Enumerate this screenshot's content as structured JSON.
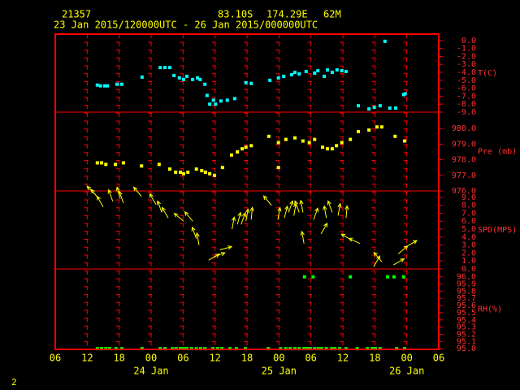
{
  "header": {
    "station": "21357",
    "latitude": "83.10S",
    "longitude": "174.29E",
    "elevation": "62M",
    "period": "23 Jan 2015/120000UTC - 26 Jan 2015/000000UTC",
    "page": "2"
  },
  "chart_data": [
    {
      "type": "scatter",
      "ylabel": "T(C)",
      "color": "#00ffff",
      "ylim": [
        -9.0,
        0.8
      ],
      "yticks": [
        {
          "value": 0,
          "label": "0.0"
        },
        {
          "value": -1,
          "label": "-1.0"
        },
        {
          "value": -2,
          "label": "-2.0"
        },
        {
          "value": -3,
          "label": "-3.0"
        },
        {
          "value": -4,
          "label": "-4.0"
        },
        {
          "value": -5,
          "label": "-5.0"
        },
        {
          "value": -6,
          "label": "-6.0"
        },
        {
          "value": -7,
          "label": "-7.0"
        },
        {
          "value": -8,
          "label": "-8.0"
        },
        {
          "value": -9,
          "label": "-9.0"
        }
      ],
      "x": [
        13.9,
        14.5,
        15.3,
        15.8,
        17.6,
        18.5,
        22.3,
        25.7,
        26.6,
        27.5,
        28.3,
        29.3,
        30.1,
        30.7,
        31.8,
        32.7,
        33.2,
        34.1,
        34.5,
        35.0,
        35.7,
        36.1,
        37.1,
        38.3,
        39.7,
        41.8,
        42.8,
        46.3,
        47.9,
        48.9,
        50.4,
        51.0,
        51.8,
        53.1,
        54.7,
        55.3,
        56.5,
        57.1,
        58.0,
        58.9,
        59.8,
        60.6,
        62.9,
        64.9,
        65.9,
        67.0,
        67.9,
        68.8,
        69.9,
        71.4,
        71.7
      ],
      "values": [
        -5.6,
        -5.7,
        -5.7,
        -5.7,
        -5.5,
        -5.5,
        -4.6,
        -3.4,
        -3.4,
        -3.4,
        -4.4,
        -4.7,
        -4.9,
        -4.5,
        -4.9,
        -4.7,
        -4.9,
        -5.5,
        -6.9,
        -8.0,
        -7.5,
        -8.0,
        -7.6,
        -7.5,
        -7.3,
        -5.3,
        -5.4,
        -5.0,
        -4.7,
        -4.5,
        -4.3,
        -4.0,
        -4.2,
        -3.9,
        -4.1,
        -3.8,
        -4.5,
        -3.7,
        -4.0,
        -3.7,
        -3.8,
        -3.9,
        -8.2,
        -8.6,
        -8.4,
        -8.2,
        -0.1,
        -8.5,
        -8.5,
        -6.8,
        -6.7
      ]
    },
    {
      "type": "scatter",
      "ylabel": "Pre (mb)",
      "color": "#ffff00",
      "ylim": [
        976.0,
        981.05
      ],
      "yticks": [
        {
          "value": 976,
          "label": "976.0"
        },
        {
          "value": 977,
          "label": "977.0"
        },
        {
          "value": 978,
          "label": "978.0"
        },
        {
          "value": 979,
          "label": "979.0"
        },
        {
          "value": 980,
          "label": "980.0"
        }
      ],
      "x": [
        13.9,
        14.7,
        15.5,
        17.3,
        18.8,
        22.2,
        25.5,
        27.5,
        28.6,
        29.5,
        30.1,
        30.9,
        32.5,
        33.5,
        34.2,
        35.0,
        35.9,
        37.4,
        39.1,
        40.2,
        41.1,
        41.8,
        42.8,
        46.1,
        47.9,
        47.9,
        49.3,
        51.0,
        52.5,
        53.7,
        54.7,
        56.2,
        57.1,
        58.0,
        58.8,
        59.8,
        61.4,
        62.9,
        64.9,
        66.4,
        67.3,
        69.8,
        71.6
      ],
      "values": [
        977.8,
        977.8,
        977.7,
        977.7,
        977.8,
        977.6,
        977.7,
        977.4,
        977.2,
        977.2,
        977.1,
        977.2,
        977.4,
        977.3,
        977.2,
        977.1,
        977.0,
        977.5,
        978.3,
        978.5,
        978.7,
        978.8,
        978.9,
        979.5,
        979.1,
        977.5,
        979.3,
        979.4,
        979.2,
        979.1,
        979.3,
        978.8,
        978.7,
        978.7,
        978.9,
        979.1,
        979.3,
        979.8,
        979.9,
        980.1,
        980.1,
        979.5,
        979.2
      ]
    },
    {
      "type": "wind",
      "ylabel": "SPD(MPS)",
      "color": "#ffff00",
      "ylim": [
        0,
        9.8
      ],
      "yticks": [
        {
          "value": 0,
          "label": "0.0"
        },
        {
          "value": 1,
          "label": "1.0"
        },
        {
          "value": 2,
          "label": "2.0"
        },
        {
          "value": 3,
          "label": "3.0"
        },
        {
          "value": 4,
          "label": "4.0"
        },
        {
          "value": 5,
          "label": "5.0"
        },
        {
          "value": 6,
          "label": "6.0"
        },
        {
          "value": 7,
          "label": "7.0"
        },
        {
          "value": 8,
          "label": "8.0"
        },
        {
          "value": 9,
          "label": "9.0"
        }
      ],
      "x": [
        13.6,
        14.2,
        15.0,
        16.8,
        18.2,
        18.8,
        22.2,
        24.9,
        26.0,
        27.2,
        30.1,
        31.8,
        32.5,
        33.0,
        34.8,
        35.7,
        36.9,
        39.2,
        40.2,
        40.9,
        41.8,
        42.8,
        46.6,
        47.8,
        49.0,
        49.8,
        50.8,
        51.8,
        52.5,
        52.7,
        54.5,
        55.9,
        56.9,
        58.0,
        59.1,
        60.6,
        61.7,
        63.2,
        65.8,
        67.3,
        69.5,
        70.4,
        71.9
      ],
      "values": [
        9.3,
        8.8,
        7.8,
        8.5,
        8.8,
        8.3,
        9.1,
        8.1,
        7.1,
        6.4,
        6.0,
        6.0,
        3.8,
        3.0,
        1.1,
        1.5,
        2.4,
        5.0,
        5.6,
        5.6,
        6.0,
        6.2,
        8.0,
        6.2,
        6.4,
        7.1,
        6.7,
        7.1,
        7.1,
        3.2,
        6.2,
        4.4,
        6.4,
        7.1,
        6.7,
        6.4,
        3.6,
        3.2,
        0.3,
        0.9,
        0.5,
        1.9,
        2.8
      ],
      "directions": [
        315,
        320,
        330,
        340,
        345,
        340,
        320,
        330,
        340,
        330,
        310,
        320,
        340,
        350,
        60,
        70,
        75,
        10,
        15,
        20,
        10,
        5,
        320,
        10,
        15,
        20,
        10,
        340,
        350,
        350,
        20,
        30,
        350,
        340,
        10,
        5,
        300,
        295,
        30,
        320,
        60,
        50,
        60
      ]
    },
    {
      "type": "scatter",
      "ylabel": "RH(%)",
      "color": "#00ff00",
      "ylim": [
        94.99,
        96.11
      ],
      "yticks": [
        {
          "value": 95,
          "label": "95.0"
        },
        95.1,
        95.2,
        95.3,
        95.4,
        95.5,
        95.6,
        95.7,
        95.8,
        95.9,
        {
          "value": 96,
          "label": "96.0"
        }
      ],
      "xlim": [
        6,
        78
      ],
      "xticks": [
        {
          "value": 6,
          "label": "06"
        },
        {
          "value": 12,
          "label": "12"
        },
        {
          "value": 18,
          "label": "18"
        },
        {
          "value": 24,
          "label": "00"
        },
        {
          "value": 30,
          "label": "06"
        },
        {
          "value": 36,
          "label": "12"
        },
        {
          "value": 42,
          "label": "18"
        },
        {
          "value": 48,
          "label": "00"
        },
        {
          "value": 54,
          "label": "06"
        },
        {
          "value": 60,
          "label": "12"
        },
        {
          "value": 66,
          "label": "18"
        },
        {
          "value": 72,
          "label": "00"
        },
        {
          "value": 78,
          "label": "06"
        }
      ],
      "date_ticks": [
        {
          "value": 24,
          "label": "24 Jan"
        },
        {
          "value": 48,
          "label": "25 Jan"
        },
        {
          "value": 72,
          "label": "26 Jan"
        }
      ],
      "x": [
        13.9,
        14.7,
        15.5,
        16.2,
        17.4,
        18.5,
        22.3,
        25.7,
        26.6,
        28.0,
        28.7,
        29.5,
        30.1,
        30.7,
        31.6,
        32.5,
        33.3,
        34.1,
        35.6,
        36.5,
        37.3,
        38.8,
        40.0,
        41.7,
        46.0,
        48.3,
        49.3,
        50.1,
        51.0,
        51.8,
        52.7,
        53.3,
        53.9,
        54.7,
        55.4,
        56.0,
        56.9,
        57.9,
        58.5,
        59.4,
        60.6,
        62.7,
        64.6,
        65.5,
        66.1,
        67.0,
        70.1,
        71.6,
        52.8,
        54.4,
        61.4,
        68.4,
        69.6,
        71.4
      ],
      "values": [
        95.0,
        95.0,
        95.0,
        95.0,
        95.0,
        95.0,
        95.0,
        95.0,
        95.0,
        95.0,
        95.0,
        95.0,
        95.0,
        95.0,
        95.0,
        95.0,
        95.0,
        95.0,
        95.0,
        95.0,
        95.0,
        95.0,
        95.0,
        95.0,
        95.0,
        95.0,
        95.0,
        95.0,
        95.0,
        95.0,
        95.0,
        95.0,
        95.0,
        95.0,
        95.0,
        95.0,
        95.0,
        95.0,
        95.0,
        95.0,
        95.0,
        95.0,
        95.0,
        95.0,
        95.0,
        95.0,
        95.0,
        95.0,
        96.0,
        96.0,
        96.0,
        96.0,
        96.0,
        96.0
      ]
    }
  ]
}
